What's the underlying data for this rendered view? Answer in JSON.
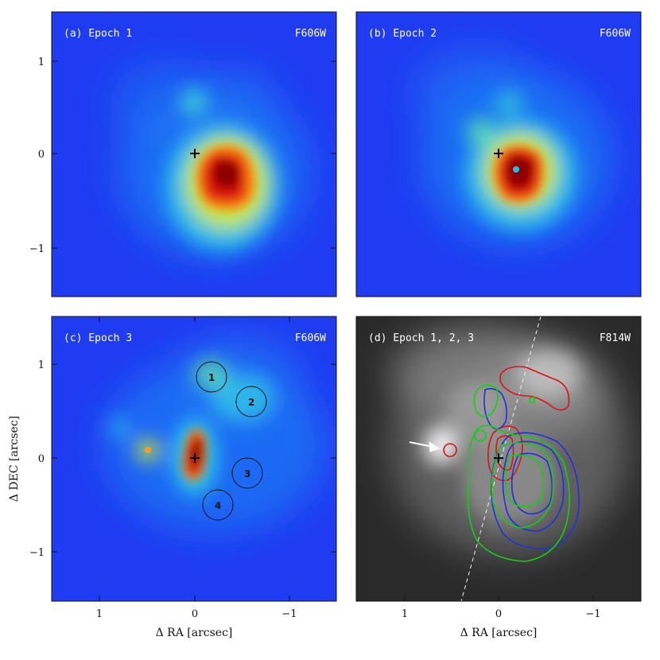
{
  "figure": {
    "panels": [
      {
        "id": "a",
        "label": "(a) Epoch 1",
        "filter": "F606W",
        "style": "jet"
      },
      {
        "id": "b",
        "label": "(b) Epoch 2",
        "filter": "F606W",
        "style": "jet"
      },
      {
        "id": "c",
        "label": "(c) Epoch 3",
        "filter": "F606W",
        "style": "jet"
      },
      {
        "id": "d",
        "label": "(d) Epoch 1, 2, 3",
        "filter": "F814W",
        "style": "gray"
      }
    ],
    "x_axis_label": "Δ RA [arcsec]",
    "y_axis_label": "Δ DEC [arcsec]",
    "x_tick_labels": [
      "1",
      "0",
      "−1"
    ],
    "y_tick_labels": [
      "1",
      "0",
      "−1"
    ],
    "region_labels": [
      "1",
      "2",
      "3",
      "4"
    ]
  },
  "colors": {
    "jet_background": "#1f3cf2",
    "epoch1_contour": "#e01010",
    "epoch2_contour": "#2030e0",
    "epoch3_contour": "#10d010"
  },
  "icons": {
    "center_marker": "plus-cross",
    "arrow": "white-arrow"
  }
}
